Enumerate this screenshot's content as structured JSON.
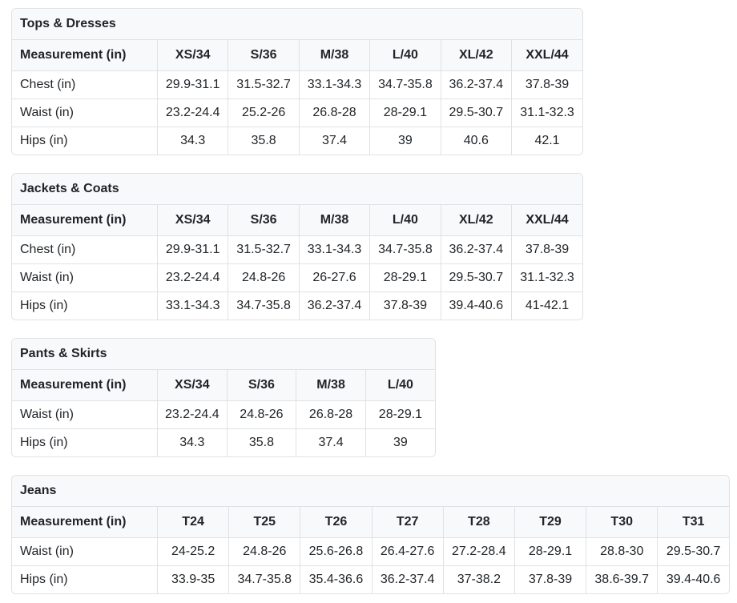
{
  "colors": {
    "header_bg": "#f8f9fa",
    "border": "#dee2e6",
    "text": "#212529",
    "page_bg": "#ffffff"
  },
  "tables": [
    {
      "title": "Tops & Dresses",
      "columns": [
        "Measurement (in)",
        "XS/34",
        "S/36",
        "M/38",
        "L/40",
        "XL/42",
        "XXL/44"
      ],
      "rows": [
        [
          "Chest (in)",
          "29.9-31.1",
          "31.5-32.7",
          "33.1-34.3",
          "34.7-35.8",
          "36.2-37.4",
          "37.8-39"
        ],
        [
          "Waist (in)",
          "23.2-24.4",
          "25.2-26",
          "26.8-28",
          "28-29.1",
          "29.5-30.7",
          "31.1-32.3"
        ],
        [
          "Hips (in)",
          "34.3",
          "35.8",
          "37.4",
          "39",
          "40.6",
          "42.1"
        ]
      ]
    },
    {
      "title": "Jackets & Coats",
      "columns": [
        "Measurement (in)",
        "XS/34",
        "S/36",
        "M/38",
        "L/40",
        "XL/42",
        "XXL/44"
      ],
      "rows": [
        [
          "Chest (in)",
          "29.9-31.1",
          "31.5-32.7",
          "33.1-34.3",
          "34.7-35.8",
          "36.2-37.4",
          "37.8-39"
        ],
        [
          "Waist (in)",
          "23.2-24.4",
          "24.8-26",
          "26-27.6",
          "28-29.1",
          "29.5-30.7",
          "31.1-32.3"
        ],
        [
          "Hips (in)",
          "33.1-34.3",
          "34.7-35.8",
          "36.2-37.4",
          "37.8-39",
          "39.4-40.6",
          "41-42.1"
        ]
      ]
    },
    {
      "title": "Pants & Skirts",
      "columns": [
        "Measurement (in)",
        "XS/34",
        "S/36",
        "M/38",
        "L/40"
      ],
      "rows": [
        [
          "Waist (in)",
          "23.2-24.4",
          "24.8-26",
          "26.8-28",
          "28-29.1"
        ],
        [
          "Hips (in)",
          "34.3",
          "35.8",
          "37.4",
          "39"
        ]
      ]
    },
    {
      "title": "Jeans",
      "columns": [
        "Measurement (in)",
        "T24",
        "T25",
        "T26",
        "T27",
        "T28",
        "T29",
        "T30",
        "T31"
      ],
      "rows": [
        [
          "Waist (in)",
          "24-25.2",
          "24.8-26",
          "25.6-26.8",
          "26.4-27.6",
          "27.2-28.4",
          "28-29.1",
          "28.8-30",
          "29.5-30.7"
        ],
        [
          "Hips (in)",
          "33.9-35",
          "34.7-35.8",
          "35.4-36.6",
          "36.2-37.4",
          "37-38.2",
          "37.8-39",
          "38.6-39.7",
          "39.4-40.6"
        ]
      ]
    }
  ]
}
